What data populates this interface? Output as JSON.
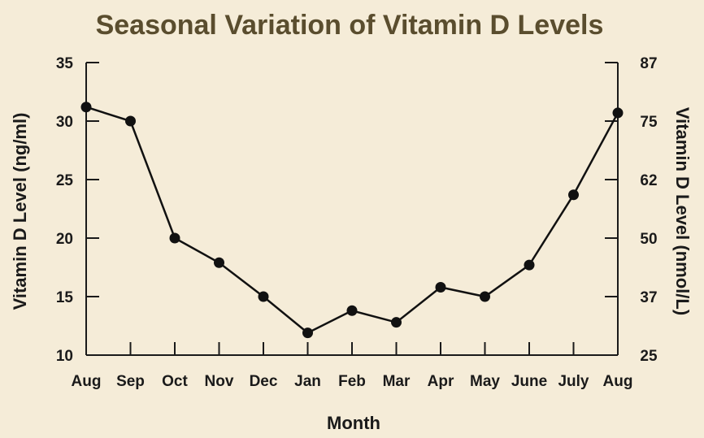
{
  "chart_data": {
    "type": "line",
    "title": "Seasonal Variation of Vitamin D Levels",
    "xlabel": "Month",
    "ylabel": "Vitamin D Level (ng/ml)",
    "y2label": "Vitamin D Level (nmol/L)",
    "categories": [
      "Aug",
      "Sep",
      "Oct",
      "Nov",
      "Dec",
      "Jan",
      "Feb",
      "Mar",
      "Apr",
      "May",
      "June",
      "July",
      "Aug"
    ],
    "series": [
      {
        "values": [
          31.2,
          30.0,
          20.0,
          17.9,
          15.0,
          11.9,
          13.8,
          12.8,
          15.8,
          15.0,
          17.7,
          23.7,
          30.7
        ]
      }
    ],
    "ylim": [
      10,
      35
    ],
    "yticks": [
      10,
      15,
      20,
      25,
      30,
      35
    ],
    "y2ticks": [
      "25",
      "37",
      "50",
      "62",
      "75",
      "87"
    ],
    "grid": false,
    "colors": {
      "line": "#111111",
      "marker": "#111111",
      "title": "#5a4d2e",
      "background": "#f5ecd8"
    }
  }
}
